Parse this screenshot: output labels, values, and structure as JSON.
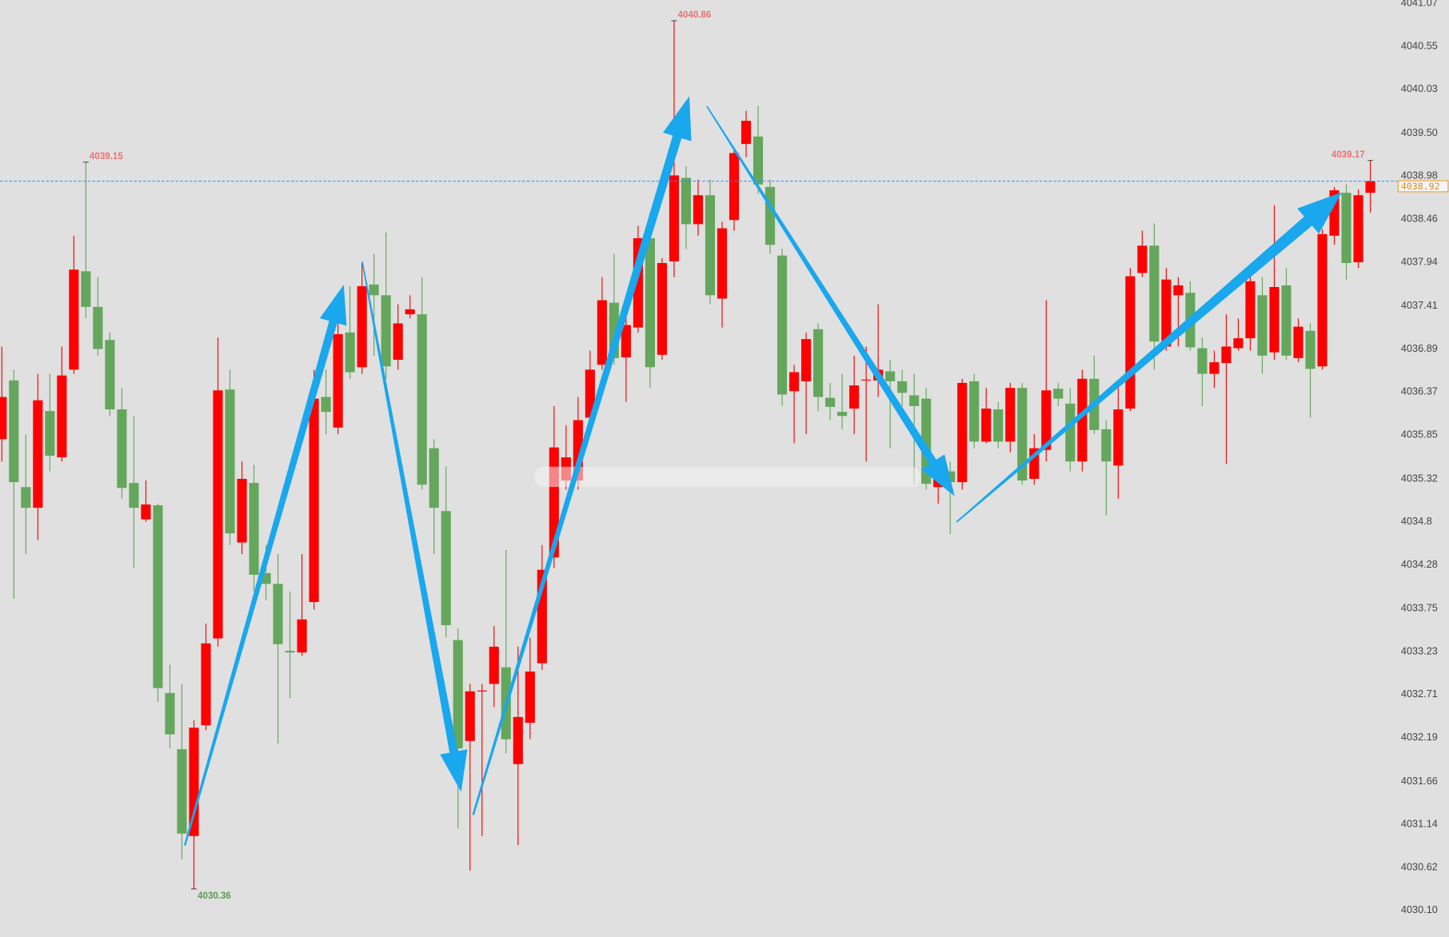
{
  "chart_data": {
    "type": "candlestick",
    "up_color": "#ff0000",
    "down_color": "#64a75c",
    "ylim": [
      4029.78,
      4041.11
    ],
    "yticks": [
      4041.07,
      4040.55,
      4040.03,
      {
        "value": 4039.5,
        "label": "4039.50"
      },
      4038.98,
      4038.46,
      4037.94,
      4037.41,
      4036.89,
      4036.37,
      4035.85,
      4035.32,
      4034.8,
      4034.28,
      4033.75,
      4033.23,
      4032.71,
      4032.19,
      4031.66,
      4031.14,
      4030.62,
      {
        "value": 4030.1,
        "label": "4030.10"
      }
    ],
    "open": [
      4035.8,
      4036.51,
      4035.22,
      4034.97,
      4036.14,
      4035.58,
      4036.64,
      4037.83,
      4037.4,
      4037.0,
      4036.16,
      4035.27,
      4034.83,
      4035.0,
      4032.73,
      4032.05,
      4031.0,
      4032.34,
      4033.39,
      4036.4,
      4034.55,
      4035.27,
      4034.18,
      4034.05,
      4033.24,
      4033.22,
      4033.83,
      4036.31,
      4035.94,
      4037.09,
      4036.67,
      4037.67,
      4037.54,
      4036.76,
      4037.31,
      4037.31,
      4035.69,
      4034.93,
      4033.37,
      4032.15,
      4032.75,
      4032.84,
      4033.04,
      4031.87,
      4032.37,
      4033.09,
      4034.37,
      4035.3,
      4035.3,
      4036.06,
      4036.7,
      4037.45,
      4036.79,
      4037.15,
      4038.23,
      4036.82,
      4037.95,
      4038.96,
      4038.4,
      4038.75,
      4037.5,
      4038.45,
      4039.37,
      4039.46,
      4038.85,
      4038.02,
      4036.38,
      4036.5,
      4037.13,
      4036.3,
      4036.13,
      4036.17,
      4036.51,
      4036.51,
      4036.62,
      4036.5,
      4036.33,
      4036.29,
      4035.22,
      4035.41,
      4035.28,
      4036.5,
      4035.77,
      4036.16,
      4035.77,
      4036.42,
      4035.32,
      4035.67,
      4036.41,
      4036.23,
      4035.53,
      4036.53,
      4035.92,
      4035.48,
      4036.17,
      4037.81,
      4038.14,
      4036.92,
      4037.54,
      4037.57,
      4036.9,
      4036.59,
      4036.72,
      4036.9,
      4037.02,
      4037.54,
      4036.85,
      4037.66,
      4036.78,
      4037.11,
      4036.68,
      4038.26,
      4038.78,
      4037.94,
      4038.78
    ],
    "high": [
      4036.92,
      4036.64,
      4035.86,
      4036.59,
      4036.59,
      4036.92,
      4038.26,
      4039.15,
      4037.76,
      4037.09,
      4036.42,
      4036.08,
      4035.3,
      4035.02,
      4033.07,
      4032.84,
      4032.4,
      4033.57,
      4037.03,
      4036.64,
      4035.53,
      4035.49,
      4034.52,
      4034.41,
      4033.96,
      4034.41,
      4036.64,
      4036.64,
      4037.54,
      4037.65,
      4037.93,
      4038.04,
      4038.3,
      4037.43,
      4037.54,
      4037.76,
      4035.8,
      4035.47,
      4033.51,
      4032.84,
      4032.84,
      4033.54,
      4034.46,
      4033.29,
      4033.4,
      4034.52,
      4036.2,
      4035.97,
      4036.31,
      4036.87,
      4037.76,
      4038.04,
      4037.31,
      4038.38,
      4038.54,
      4037.99,
      4040.86,
      4039.1,
      4038.94,
      4038.94,
      4038.43,
      4039.33,
      4039.77,
      4039.83,
      4038.94,
      4038.1,
      4036.7,
      4037.09,
      4037.2,
      4036.48,
      4036.59,
      4036.81,
      4036.92,
      4037.43,
      4036.76,
      4036.64,
      4036.59,
      4036.42,
      4035.47,
      4035.53,
      4036.53,
      4036.59,
      4036.42,
      4036.25,
      4036.48,
      4036.48,
      4035.86,
      4037.48,
      4036.48,
      4036.42,
      4036.64,
      4036.81,
      4036.03,
      4036.48,
      4037.87,
      4038.32,
      4038.41,
      4037.87,
      4037.76,
      4037.71,
      4037.03,
      4036.87,
      4037.31,
      4037.26,
      4037.87,
      4037.76,
      4038.63,
      4037.87,
      4037.26,
      4037.2,
      4038.34,
      4038.85,
      4038.88,
      4038.82,
      4039.17
    ],
    "low": [
      4035.53,
      4033.87,
      4034.41,
      4034.58,
      4035.41,
      4035.53,
      4036.59,
      4037.26,
      4036.81,
      4036.08,
      4035.08,
      4034.24,
      4034.8,
      4032.62,
      4032.06,
      4030.72,
      4030.36,
      4032.28,
      4033.29,
      4034.52,
      4034.41,
      4033.96,
      4033.85,
      4032.12,
      4032.67,
      4033.18,
      4033.74,
      4035.86,
      4035.86,
      4036.53,
      4036.59,
      4036.81,
      4036.53,
      4036.64,
      4037.26,
      4035.19,
      4034.41,
      4033.4,
      4031.09,
      4030.58,
      4031.0,
      4032.56,
      4032.0,
      4030.89,
      4032.17,
      4033.01,
      4034.24,
      4035.19,
      4035.19,
      4035.97,
      4036.64,
      4036.7,
      4036.25,
      4037.09,
      4036.42,
      4036.76,
      4037.76,
      4038.1,
      4038.26,
      4037.43,
      4037.15,
      4038.32,
      4039.21,
      4038.77,
      4038.04,
      4036.2,
      4035.75,
      4035.86,
      4036.14,
      4036.03,
      4035.92,
      4035.86,
      4035.53,
      4036.31,
      4035.69,
      4036.2,
      4035.25,
      4035.19,
      4035.02,
      4034.65,
      4035.19,
      4035.69,
      4035.75,
      4035.69,
      4035.64,
      4035.25,
      4035.25,
      4035.53,
      4036.2,
      4035.41,
      4035.41,
      4035.86,
      4034.88,
      4035.08,
      4036.14,
      4037.76,
      4036.64,
      4036.87,
      4036.92,
      4036.87,
      4036.2,
      4036.42,
      4035.5,
      4036.87,
      4036.87,
      4036.59,
      4036.76,
      4036.76,
      4036.73,
      4036.06,
      4036.64,
      4038.15,
      4037.73,
      4037.87,
      4038.54
    ],
    "close": [
      4036.31,
      4035.28,
      4034.97,
      4036.27,
      4035.6,
      4036.57,
      4037.85,
      4037.4,
      4036.89,
      4036.16,
      4035.21,
      4034.97,
      4035.01,
      4032.79,
      4032.23,
      4031.03,
      4032.31,
      4033.33,
      4036.39,
      4034.66,
      4035.32,
      4034.16,
      4034.05,
      4033.32,
      4033.22,
      4033.62,
      4036.29,
      4036.13,
      4037.07,
      4036.61,
      4037.65,
      4037.54,
      4036.68,
      4037.2,
      4037.37,
      4035.25,
      4034.97,
      4033.55,
      4032.06,
      4032.75,
      4032.76,
      4033.29,
      4032.17,
      4032.44,
      4032.99,
      4034.22,
      4035.7,
      4035.58,
      4036.03,
      4036.64,
      4037.48,
      4036.78,
      4037.18,
      4038.23,
      4036.67,
      4037.93,
      4038.99,
      4038.4,
      4038.75,
      4037.54,
      4038.35,
      4039.26,
      4039.65,
      4038.88,
      4038.15,
      4036.34,
      4036.61,
      4037.01,
      4036.31,
      4036.19,
      4036.08,
      4036.45,
      4036.52,
      4036.64,
      4036.5,
      4036.36,
      4036.2,
      4035.26,
      4035.39,
      4035.28,
      4036.48,
      4035.77,
      4036.17,
      4035.77,
      4036.42,
      4035.3,
      4035.69,
      4036.39,
      4036.29,
      4035.53,
      4036.53,
      4035.91,
      4035.53,
      4036.16,
      4037.77,
      4038.14,
      4036.98,
      4037.73,
      4037.66,
      4036.91,
      4036.59,
      4036.73,
      4036.92,
      4037.02,
      4037.71,
      4036.81,
      4037.64,
      4036.81,
      4037.16,
      4036.65,
      4038.28,
      4038.81,
      4037.93,
      4038.75,
      4038.92
    ],
    "high_labels": [
      4039.15,
      4040.86,
      4039.17
    ],
    "low_labels": [
      4030.36
    ],
    "last_price": 4038.92
  }
}
